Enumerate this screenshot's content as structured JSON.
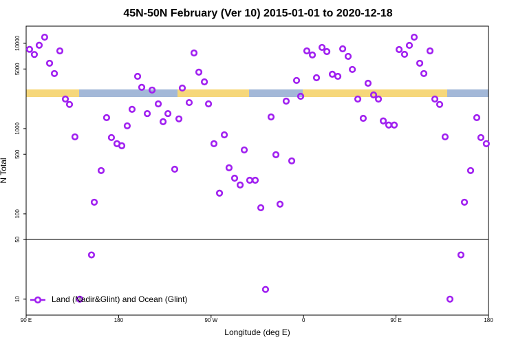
{
  "chart_data": {
    "type": "scatter",
    "title": "45N-50N February (Ver 10)   2015-01-01 to 2020-12-18",
    "x_label": "Longitude (deg E)",
    "y_label": "N Total",
    "xlim": [
      90,
      540
    ],
    "xticks": [
      {
        "value": 90,
        "label": "90 E"
      },
      180,
      {
        "value": 270,
        "label": "90 W"
      },
      {
        "value": 360,
        "label": "0"
      },
      {
        "value": 450,
        "label": "90 E"
      },
      {
        "value": 540,
        "label": "180"
      }
    ],
    "ylim": [
      6.5,
      15900
    ],
    "y_scale": "log",
    "yticks": [
      10,
      50,
      100,
      500,
      1000,
      5000,
      10000
    ],
    "reference_line": 50,
    "legend": "bottom-left",
    "series": [
      {
        "name": "Land (Nadir&Glint) and Ocean (Glint)",
        "color": "#a020f0",
        "x": [
          93.3,
          98,
          102.7,
          108,
          112.8,
          117.5,
          122.8,
          128.2,
          132.2,
          137.5,
          142.2,
          153.6,
          156.3,
          163,
          168.3,
          173,
          178.4,
          183.1,
          188.4,
          193.1,
          198.5,
          202.5,
          207.9,
          212.6,
          218.6,
          223.3,
          228,
          234.6,
          238.7,
          242,
          248.7,
          253.4,
          258.1,
          263.5,
          267.5,
          272.8,
          278.2,
          282.9,
          287.5,
          292.9,
          298.3,
          302.3,
          307.6,
          313,
          318.4,
          323,
          328.4,
          333.1,
          337.1,
          343.1,
          348.5,
          353.2,
          357.2,
          363.2,
          368.6,
          372.6,
          378,
          382.7,
          388,
          393.4,
          398.1,
          403.4,
          407.5,
          412.8,
          418.1,
          422.8,
          428.2,
          432.9,
          437.6,
          442.9,
          448.3,
          453,
          458.3,
          463,
          467.7,
          473.1,
          477.1,
          483.1,
          487.8,
          492.5,
          497.8,
          502.5,
          513.2,
          516.6,
          522.6,
          528.6,
          532.6,
          537.9
        ],
        "values": [
          8500,
          7400,
          9500,
          11800,
          5840,
          4420,
          8150,
          2220,
          1920,
          800,
          10,
          33,
          137,
          322,
          1345,
          785,
          665,
          629,
          1077,
          1683,
          4100,
          3050,
          1500,
          2830,
          1950,
          1205,
          1500,
          334,
          1300,
          2990,
          2020,
          7710,
          4590,
          3530,
          1950,
          665,
          175,
          845,
          347,
          262,
          218,
          562,
          248,
          248,
          118,
          13,
          1370,
          494,
          130,
          2100,
          418,
          3670,
          2390,
          8150,
          7300,
          3950,
          8950,
          8000,
          4340,
          4100,
          8610,
          7030,
          4940,
          2220,
          1320,
          3400,
          2480,
          2220,
          1230,
          1100,
          1100,
          8460,
          7430,
          9460,
          11800,
          5840,
          4420,
          8150,
          2220,
          1920,
          800,
          10,
          33,
          137,
          322,
          1345,
          785,
          665
        ]
      }
    ]
  }
}
